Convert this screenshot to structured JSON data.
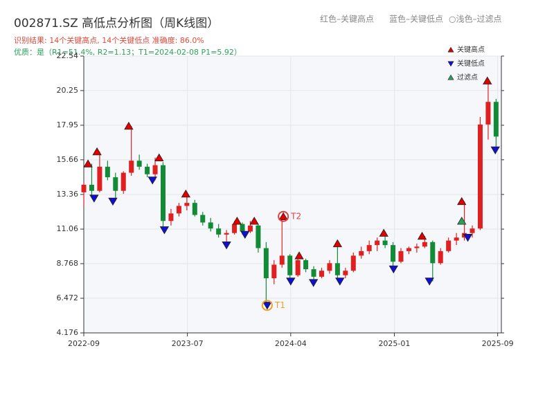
{
  "chart_data": {
    "type": "candlestick",
    "title": "002871.SZ 高低点分析图（周K线图）",
    "subtitle": [
      "识别结果: 14个关键高点, 14个关键低点   准确度: 86.0%",
      "优质：是（R1=51.4%, R2=1.13；T1=2024-02-08 P1=5.92）"
    ],
    "header_legend": [
      "红色–关键高点",
      "蓝色–关键低点",
      "○浅色–过滤点"
    ],
    "x": [
      0,
      3,
      6,
      9,
      12,
      15,
      18,
      21,
      24,
      27,
      30,
      33,
      36,
      39,
      42,
      45,
      48,
      51,
      54,
      57,
      60,
      63,
      66,
      69,
      72,
      75,
      78,
      81,
      84,
      87,
      90,
      93,
      96,
      99,
      102,
      105,
      108,
      111,
      114,
      117,
      120,
      123,
      126,
      129,
      132,
      135,
      138,
      141,
      144,
      147,
      150,
      153,
      156
    ],
    "open": [
      13.5,
      14.0,
      13.6,
      15.2,
      14.5,
      13.6,
      14.8,
      15.6,
      15.2,
      14.7,
      15.3,
      11.6,
      12.1,
      12.6,
      12.8,
      12.0,
      11.5,
      11.1,
      10.7,
      10.8,
      11.4,
      10.9,
      11.3,
      9.8,
      7.8,
      8.7,
      9.3,
      8.0,
      9.0,
      8.4,
      7.9,
      8.3,
      8.8,
      8.0,
      8.3,
      9.3,
      9.6,
      10.0,
      10.3,
      10.0,
      8.9,
      9.6,
      9.8,
      9.9,
      10.2,
      8.8,
      9.6,
      10.3,
      10.5,
      10.8,
      11.1,
      18.0,
      19.5
    ],
    "high": [
      14.2,
      15.4,
      16.2,
      15.6,
      14.8,
      14.9,
      17.9,
      16.0,
      15.4,
      15.8,
      15.5,
      12.4,
      12.8,
      13.4,
      13.0,
      12.2,
      11.8,
      11.4,
      11.0,
      11.6,
      11.5,
      11.6,
      11.4,
      10.2,
      9.0,
      11.9,
      9.4,
      9.3,
      9.1,
      8.6,
      8.5,
      9.0,
      10.1,
      8.5,
      9.5,
      9.9,
      10.3,
      10.5,
      10.8,
      10.2,
      9.8,
      9.9,
      10.1,
      10.6,
      10.3,
      9.8,
      10.5,
      10.8,
      12.9,
      11.3,
      18.5,
      20.9,
      19.7
    ],
    "low": [
      12.6,
      13.2,
      13.5,
      14.3,
      12.9,
      13.4,
      14.6,
      15.0,
      14.5,
      14.3,
      11.0,
      11.3,
      11.9,
      12.3,
      11.9,
      11.3,
      10.9,
      10.5,
      10.0,
      10.7,
      10.7,
      10.8,
      9.5,
      6.0,
      7.4,
      8.5,
      7.6,
      7.9,
      8.2,
      7.5,
      7.8,
      8.1,
      7.6,
      7.8,
      8.2,
      9.1,
      9.4,
      9.6,
      9.8,
      8.4,
      8.8,
      9.4,
      9.5,
      9.8,
      7.6,
      8.7,
      9.5,
      10.0,
      10.3,
      10.5,
      11.0,
      17.0,
      16.3
    ],
    "close": [
      14.0,
      13.6,
      15.2,
      14.5,
      13.6,
      14.8,
      15.6,
      15.2,
      14.7,
      15.3,
      11.6,
      12.1,
      12.6,
      12.8,
      12.0,
      11.5,
      11.1,
      10.7,
      10.8,
      11.4,
      10.9,
      11.3,
      9.8,
      7.8,
      8.7,
      9.3,
      8.0,
      9.0,
      8.4,
      7.9,
      8.3,
      8.8,
      8.0,
      8.3,
      9.3,
      9.6,
      10.0,
      10.3,
      10.0,
      8.9,
      9.6,
      9.8,
      9.9,
      10.2,
      8.8,
      9.6,
      10.3,
      10.5,
      10.8,
      11.1,
      18.0,
      19.5,
      17.2
    ],
    "up_color": "#e02020",
    "down_color": "#138a36",
    "xlim": [
      0,
      158
    ],
    "ylim": [
      4.176,
      22.54
    ],
    "xticks": [
      {
        "value": 0,
        "label": "2022-09"
      },
      {
        "value": 39.2,
        "label": "2023-07"
      },
      {
        "value": 78.3,
        "label": "2024-04"
      },
      {
        "value": 117.5,
        "label": "2025-01"
      },
      {
        "value": 156.6,
        "label": "2025-09"
      }
    ],
    "yticks": [
      4.176,
      6.472,
      8.768,
      11.06,
      13.36,
      15.66,
      17.95,
      20.25,
      22.54
    ],
    "grid": true,
    "markers": [
      {
        "name": "关键高点",
        "color": "#e00000",
        "shape": "up",
        "x": [
          1.6,
          5,
          17,
          28.5,
          38.6,
          58,
          64.5,
          75.5,
          81.5,
          96,
          113.5,
          128,
          143,
          152.7
        ],
        "values": [
          15.4,
          16.2,
          17.9,
          15.8,
          13.4,
          11.6,
          11.6,
          11.9,
          9.3,
          10.1,
          10.8,
          10.6,
          12.9,
          20.9
        ]
      },
      {
        "name": "关键低点",
        "color": "#1010d0",
        "shape": "down",
        "x": [
          3.9,
          11,
          26,
          30.5,
          54,
          61,
          69.4,
          78.3,
          86.9,
          96.9,
          117.2,
          130.8,
          145.3,
          155.7
        ],
        "values": [
          13.1,
          12.9,
          14.3,
          11.0,
          10.0,
          10.7,
          6.0,
          7.6,
          7.5,
          7.6,
          8.4,
          7.6,
          10.5,
          16.3
        ]
      },
      {
        "name": "过滤点",
        "color": "#2ca05a",
        "shape": "up",
        "x": [
          143
        ],
        "values": [
          11.6
        ]
      }
    ],
    "annotations": [
      {
        "text": "T1",
        "x": 69.4,
        "value": 6.0,
        "color": "#f0a020"
      },
      {
        "text": "T2",
        "x": 75.5,
        "value": 11.9,
        "color": "#e04040"
      }
    ]
  }
}
